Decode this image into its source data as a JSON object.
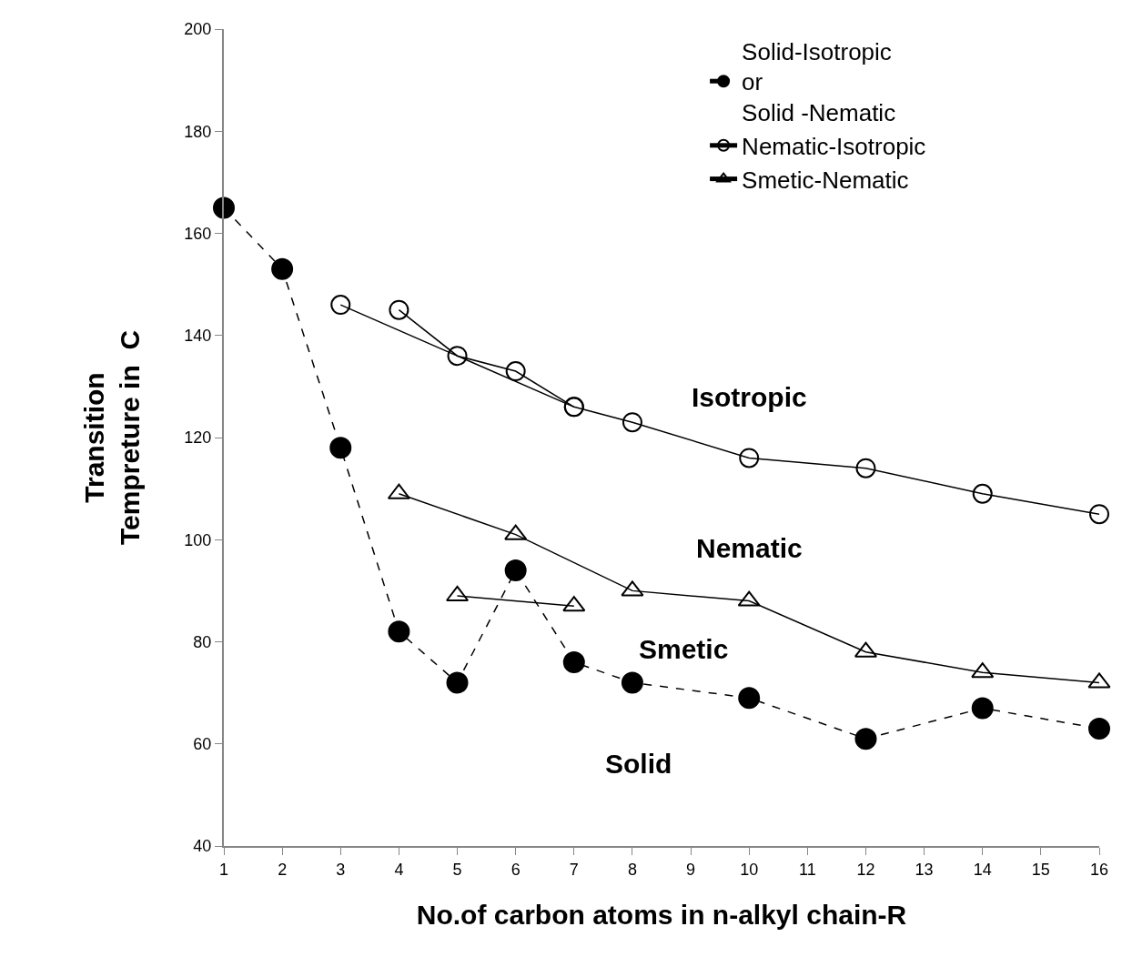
{
  "chart_data": {
    "type": "line",
    "xlabel": "No.of carbon atoms in n-alkyl chain-R",
    "ylabel": "Transition\nTempreture in  C",
    "xlim": [
      1,
      16
    ],
    "xticks": [
      1,
      2,
      3,
      4,
      5,
      6,
      7,
      8,
      9,
      10,
      11,
      12,
      13,
      14,
      15,
      16
    ],
    "ylim": [
      40,
      200
    ],
    "yticks": [
      40,
      60,
      80,
      100,
      120,
      140,
      160,
      180,
      200
    ],
    "legend": "top right",
    "series": [
      {
        "name": "Solid-Isotropic\nor\nSolid -Nematic",
        "color": "#000000",
        "marker": "circle",
        "line_style": "dashed",
        "x": [
          1,
          2,
          3,
          4,
          5,
          6,
          7,
          8,
          10,
          12,
          14,
          16
        ],
        "values": [
          165,
          153,
          118,
          82,
          72,
          94,
          76,
          72,
          69,
          61,
          67,
          63
        ]
      },
      {
        "name": "Nematic-Isotropic",
        "color": "#000000",
        "marker": "circle",
        "line_style": "solid",
        "x": [
          3,
          7,
          8,
          10,
          12,
          14,
          16
        ],
        "values": [
          146,
          126,
          123,
          116,
          114,
          109,
          105
        ]
      },
      {
        "color": "#000000",
        "marker": "circle",
        "line_style": "solid",
        "x": [
          4,
          5,
          6,
          7
        ],
        "values": [
          145,
          136,
          133,
          126
        ]
      },
      {
        "name": "Smetic-Nematic",
        "color": "#000000",
        "marker": "triangle",
        "line_style": "solid",
        "x": [
          4,
          6,
          8,
          10,
          12,
          14,
          16
        ],
        "values": [
          109,
          101,
          90,
          88,
          78,
          74,
          72
        ]
      },
      {
        "color": "#000000",
        "marker": "triangle",
        "line_style": "solid",
        "x": [
          5,
          7
        ],
        "values": [
          89,
          87
        ]
      }
    ],
    "annotations": [
      "Isotropic",
      "Nematic",
      "Smetic",
      "Solid"
    ]
  }
}
